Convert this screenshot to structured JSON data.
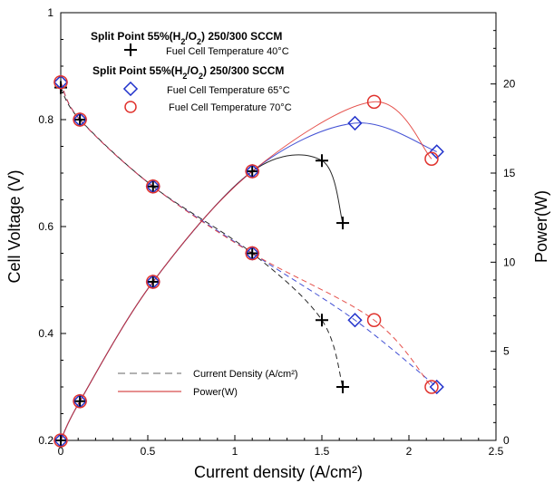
{
  "chart_data": {
    "type": "line",
    "xlabel": "Current density (A/cm²)",
    "ylabel_left": "Cell Voltage (V)",
    "ylabel_right": "Power(W)",
    "xlim": [
      0,
      2.5
    ],
    "ylim_left": [
      0.2,
      1.0
    ],
    "ylim_right": [
      0,
      24
    ],
    "x_ticks": [
      "0",
      "0.5",
      "1",
      "1.5",
      "2",
      "2.5"
    ],
    "y_ticks_left": [
      "0.2",
      "0.4",
      "0.6",
      "0.8",
      "1"
    ],
    "y_ticks_right": [
      "0",
      "5",
      "10",
      "15",
      "20"
    ],
    "grid": false,
    "legend": {
      "heading_1": "Split Point 55%(H",
      "heading_1_sub1": "2",
      "heading_1_mid": "/O",
      "heading_1_sub2": "2",
      "heading_1_end": ") 250/300 SCCM",
      "entry_40": "Fuel Cell Temperature 40°C",
      "heading_2": "Split Point 55%(H",
      "heading_2_sub1": "2",
      "heading_2_mid": "/O",
      "heading_2_sub2": "2",
      "heading_2_end": ") 250/300 SCCM",
      "entry_65": "Fuel Cell Temperature 65°C",
      "entry_70": "Fuel Cell Temperature 70°C",
      "line_dash": "Current Density (A/cm²)",
      "line_solid": "Power(W)"
    },
    "series": [
      {
        "name": "Fuel Cell Temperature 40°C",
        "marker": "plus",
        "color": "#000000",
        "voltage": [
          [
            0,
            0.86
          ],
          [
            0.11,
            0.8
          ],
          [
            0.53,
            0.675
          ],
          [
            1.1,
            0.55
          ],
          [
            1.5,
            0.425
          ],
          [
            1.62,
            0.3
          ]
        ],
        "power": [
          [
            0,
            0
          ],
          [
            0.11,
            2.2
          ],
          [
            0.53,
            8.9
          ],
          [
            1.1,
            15.1
          ],
          [
            1.5,
            15.7
          ],
          [
            1.62,
            12.2
          ]
        ]
      },
      {
        "name": "Fuel Cell Temperature 65°C",
        "marker": "diamond",
        "color": "#2233cc",
        "voltage": [
          [
            0,
            0.87
          ],
          [
            0.11,
            0.8
          ],
          [
            0.53,
            0.675
          ],
          [
            1.1,
            0.55
          ],
          [
            1.69,
            0.425
          ],
          [
            2.16,
            0.3
          ]
        ],
        "power": [
          [
            0,
            0
          ],
          [
            0.11,
            2.2
          ],
          [
            0.53,
            8.9
          ],
          [
            1.1,
            15.1
          ],
          [
            1.69,
            17.8
          ],
          [
            2.16,
            16.2
          ]
        ]
      },
      {
        "name": "Fuel Cell Temperature 70°C",
        "marker": "circle",
        "color": "#e0322d",
        "voltage": [
          [
            0,
            0.87
          ],
          [
            0.11,
            0.8
          ],
          [
            0.53,
            0.675
          ],
          [
            1.1,
            0.55
          ],
          [
            1.8,
            0.425
          ],
          [
            2.13,
            0.3
          ]
        ],
        "power": [
          [
            0,
            0
          ],
          [
            0.11,
            2.2
          ],
          [
            0.53,
            8.9
          ],
          [
            1.1,
            15.1
          ],
          [
            1.8,
            19.0
          ],
          [
            2.13,
            15.8
          ]
        ]
      }
    ]
  }
}
